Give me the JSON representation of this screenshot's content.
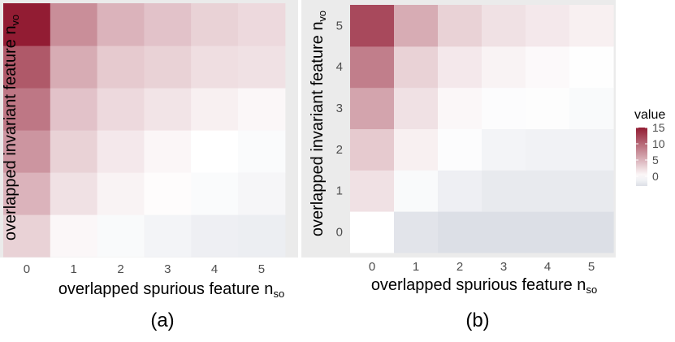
{
  "chart_data": [
    {
      "type": "heatmap",
      "panel_label": "(a)",
      "xlabel": "overlapped spurious feature n",
      "xlabel_sub": "so",
      "ylabel": "overlapped invariant feature n",
      "ylabel_sub": "vo",
      "x": [
        0,
        1,
        2,
        3,
        4,
        5
      ],
      "y": [
        0,
        1,
        2,
        3,
        4,
        5
      ],
      "x_tick_labels": [
        "0",
        "1",
        "2",
        "3",
        "4",
        "5"
      ],
      "y_tick_labels": [],
      "values": [
        [
          3.0,
          0.5,
          -0.5,
          -1.0,
          -1.5,
          -1.6
        ],
        [
          5.0,
          2.0,
          0.8,
          0.2,
          -0.4,
          -0.8
        ],
        [
          7.0,
          3.0,
          1.5,
          0.6,
          0.0,
          -0.4
        ],
        [
          9.0,
          4.0,
          2.5,
          1.8,
          1.0,
          0.5
        ],
        [
          11.0,
          5.5,
          3.5,
          3.0,
          2.2,
          2.0
        ],
        [
          15.0,
          7.5,
          5.0,
          4.0,
          3.0,
          2.5
        ]
      ]
    },
    {
      "type": "heatmap",
      "panel_label": "(b)",
      "xlabel": "overlapped spurious feature n",
      "xlabel_sub": "so",
      "ylabel": "overlapped invariant feature n",
      "ylabel_sub": "vo",
      "x": [
        0,
        1,
        2,
        3,
        4,
        5
      ],
      "y": [
        0,
        1,
        2,
        3,
        4,
        5
      ],
      "x_tick_labels": [
        "0",
        "1",
        "2",
        "3",
        "4",
        "5"
      ],
      "y_tick_labels": [
        "0",
        "1",
        "2",
        "3",
        "4",
        "5"
      ],
      "values": [
        [
          0.0,
          -2.5,
          -3.0,
          -3.0,
          -3.0,
          -3.0
        ],
        [
          2.0,
          -0.5,
          -1.5,
          -2.0,
          -2.0,
          -2.0
        ],
        [
          3.5,
          1.0,
          -0.3,
          -1.0,
          -1.2,
          -1.2
        ],
        [
          6.0,
          2.0,
          0.5,
          -0.3,
          -0.2,
          -0.5
        ],
        [
          8.5,
          3.0,
          1.5,
          0.8,
          0.4,
          -0.1
        ],
        [
          12.0,
          5.5,
          3.0,
          2.0,
          1.5,
          1.0
        ]
      ]
    }
  ],
  "legend": {
    "title": "value",
    "ticks": [
      15,
      10,
      5,
      0
    ],
    "range": [
      -3,
      15
    ],
    "colors": {
      "low": "#dcdfe6",
      "mid": "#ffffff",
      "high": "#921c33"
    }
  },
  "style": {
    "panel_bg": "#ebebeb",
    "tick_color": "#4d4d4d"
  }
}
